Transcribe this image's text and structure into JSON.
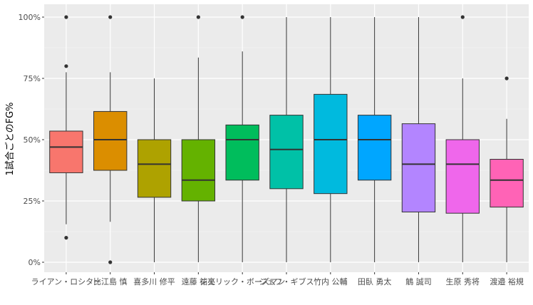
{
  "chart_data": {
    "type": "box",
    "title": "",
    "xlabel": "",
    "ylabel": "1試合ごとのFG%",
    "ylim": [
      0,
      1.0
    ],
    "y_ticks": [
      0,
      0.25,
      0.5,
      0.75,
      1.0
    ],
    "y_tick_labels": [
      "0%",
      "25%",
      "50%",
      "75%",
      "100%"
    ],
    "grid": true,
    "legend": "none",
    "categories": [
      "ライアン・ロシター",
      "比江島 慎",
      "喜多川 修平",
      "遠藤 祐亮",
      "ジェリック・ボーズマン",
      "ジェフ・ギブス",
      "竹内 公輔",
      "田臥 勇太",
      "鵤 誠司",
      "生原 秀将",
      "渡邉 裕規"
    ],
    "boxes": [
      {
        "whisker_low": 0.155,
        "q1": 0.365,
        "median": 0.47,
        "q3": 0.535,
        "whisker_high": 0.775,
        "outliers": [
          1.0,
          0.8,
          0.1
        ],
        "color": "#F8766D"
      },
      {
        "whisker_low": 0.165,
        "q1": 0.375,
        "median": 0.5,
        "q3": 0.615,
        "whisker_high": 0.775,
        "outliers": [
          1.0,
          0.0
        ],
        "color": "#DB8E00"
      },
      {
        "whisker_low": 0.0,
        "q1": 0.265,
        "median": 0.4,
        "q3": 0.5,
        "whisker_high": 0.75,
        "outliers": [],
        "color": "#AEA200"
      },
      {
        "whisker_low": 0.0,
        "q1": 0.25,
        "median": 0.335,
        "q3": 0.5,
        "whisker_high": 0.835,
        "outliers": [
          1.0
        ],
        "color": "#64B200"
      },
      {
        "whisker_low": 0.0,
        "q1": 0.335,
        "median": 0.5,
        "q3": 0.56,
        "whisker_high": 0.86,
        "outliers": [
          1.0
        ],
        "color": "#00BD5C"
      },
      {
        "whisker_low": 0.0,
        "q1": 0.3,
        "median": 0.46,
        "q3": 0.6,
        "whisker_high": 1.0,
        "outliers": [],
        "color": "#00C1A7"
      },
      {
        "whisker_low": 0.0,
        "q1": 0.28,
        "median": 0.5,
        "q3": 0.685,
        "whisker_high": 1.0,
        "outliers": [],
        "color": "#00BADE"
      },
      {
        "whisker_low": 0.0,
        "q1": 0.335,
        "median": 0.5,
        "q3": 0.6,
        "whisker_high": 1.0,
        "outliers": [],
        "color": "#00A6FF"
      },
      {
        "whisker_low": 0.0,
        "q1": 0.205,
        "median": 0.4,
        "q3": 0.565,
        "whisker_high": 1.0,
        "outliers": [],
        "color": "#B385FF"
      },
      {
        "whisker_low": 0.0,
        "q1": 0.2,
        "median": 0.4,
        "q3": 0.5,
        "whisker_high": 0.75,
        "outliers": [
          1.0
        ],
        "color": "#EF67EB"
      },
      {
        "whisker_low": 0.0,
        "q1": 0.225,
        "median": 0.335,
        "q3": 0.42,
        "whisker_high": 0.585,
        "outliers": [
          0.75
        ],
        "color": "#FF63B6"
      }
    ]
  },
  "colors": {
    "panel_background": "#EBEBEB",
    "grid_major": "#FFFFFF",
    "grid_minor": "#F5F5F5",
    "line": "#333333"
  }
}
